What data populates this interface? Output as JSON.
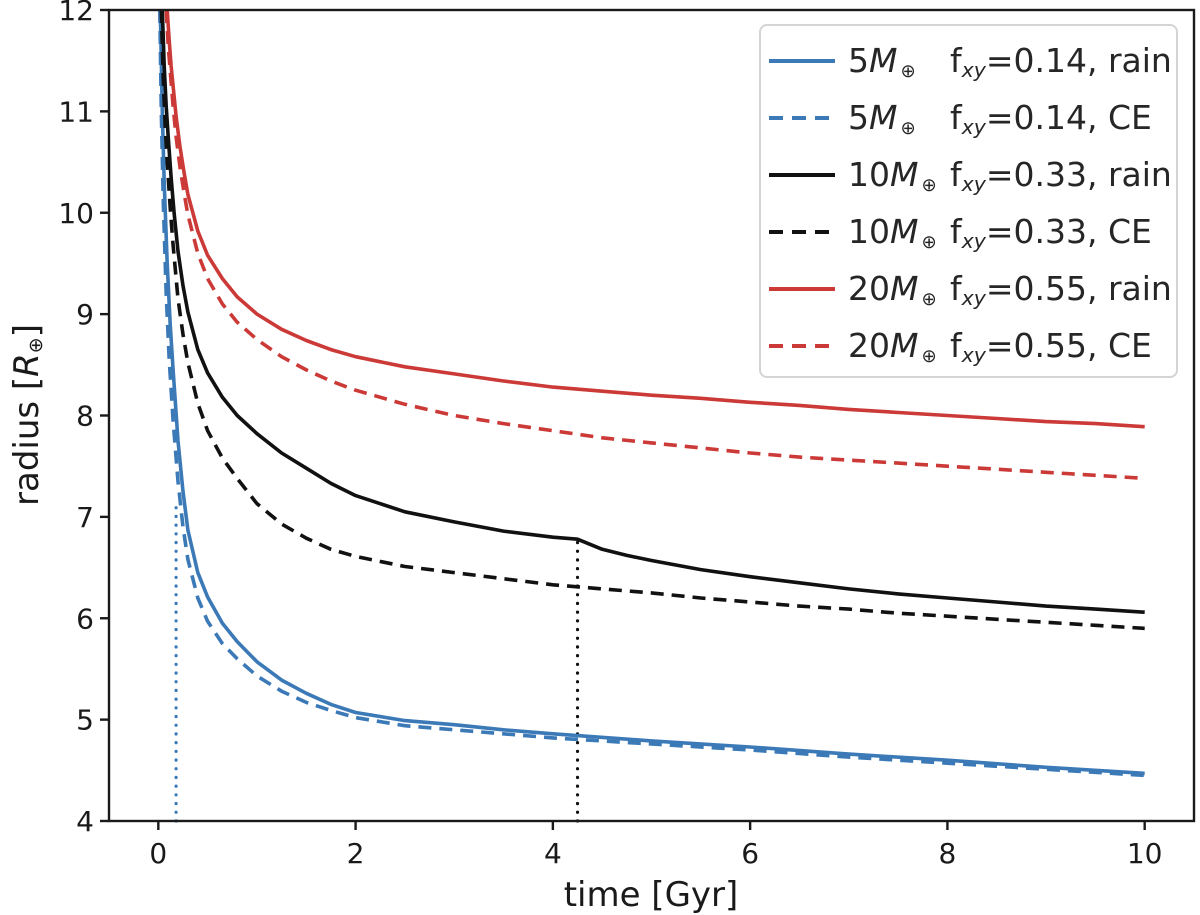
{
  "figure": {
    "xlabel": "time [Gyr]",
    "ylabel_prefix": "radius [",
    "ylabel_R": "R",
    "ylabel_sub": "⊕",
    "ylabel_suffix": "]"
  },
  "legend": {
    "symbols": {
      "mass_unit": "M",
      "earth": "⊕",
      "f": "f",
      "f_sub": "xy"
    },
    "entries": [
      {
        "mass": "5",
        "value": "=0.14",
        "mode": ", rain"
      },
      {
        "mass": "5",
        "value": "=0.14",
        "mode": ", CE"
      },
      {
        "mass": "10",
        "value": "=0.33",
        "mode": ", rain"
      },
      {
        "mass": "10",
        "value": "=0.33",
        "mode": ", CE"
      },
      {
        "mass": "20",
        "value": "=0.55",
        "mode": ", rain"
      },
      {
        "mass": "20",
        "value": "=0.55",
        "mode": ", CE"
      }
    ]
  },
  "chart_data": {
    "type": "line",
    "title": "",
    "xlabel": "time [Gyr]",
    "ylabel": "radius [R⊕]",
    "xlim": [
      -0.5,
      10.5
    ],
    "ylim": [
      4,
      12
    ],
    "xticks": [
      0,
      2,
      4,
      6,
      8,
      10
    ],
    "xtick_labels": [
      "0",
      "2",
      "4",
      "6",
      "8",
      "10"
    ],
    "yticks": [
      4,
      5,
      6,
      7,
      8,
      9,
      10,
      11,
      12
    ],
    "ytick_labels": [
      "4",
      "5",
      "6",
      "7",
      "8",
      "9",
      "10",
      "11",
      "12"
    ],
    "grid": false,
    "legend_position": "upper right",
    "axis_color": "#1a1a1a",
    "series": [
      {
        "name": "5M⊕ fxy=0.14, rain",
        "color": "#3b79b7",
        "style": "solid",
        "points": [
          [
            0.02,
            12
          ],
          [
            0.04,
            11.0
          ],
          [
            0.06,
            10.3
          ],
          [
            0.09,
            9.5
          ],
          [
            0.12,
            8.9
          ],
          [
            0.15,
            8.45
          ],
          [
            0.2,
            7.75
          ],
          [
            0.25,
            7.25
          ],
          [
            0.3,
            6.87
          ],
          [
            0.4,
            6.45
          ],
          [
            0.5,
            6.21
          ],
          [
            0.65,
            5.95
          ],
          [
            0.8,
            5.77
          ],
          [
            1.0,
            5.57
          ],
          [
            1.25,
            5.39
          ],
          [
            1.5,
            5.26
          ],
          [
            1.75,
            5.15
          ],
          [
            2.0,
            5.07
          ],
          [
            2.5,
            4.99
          ],
          [
            3.0,
            4.95
          ],
          [
            3.5,
            4.9
          ],
          [
            4.0,
            4.86
          ],
          [
            5.0,
            4.79
          ],
          [
            6.0,
            4.73
          ],
          [
            7.0,
            4.66
          ],
          [
            8.0,
            4.6
          ],
          [
            9.0,
            4.53
          ],
          [
            10.0,
            4.47
          ]
        ]
      },
      {
        "name": "5M⊕ fxy=0.14, CE",
        "color": "#3b79b7",
        "style": "dashed",
        "points": [
          [
            0.015,
            12
          ],
          [
            0.03,
            11.0
          ],
          [
            0.05,
            10.1
          ],
          [
            0.08,
            9.2
          ],
          [
            0.11,
            8.55
          ],
          [
            0.15,
            7.95
          ],
          [
            0.2,
            7.35
          ],
          [
            0.25,
            6.9
          ],
          [
            0.3,
            6.58
          ],
          [
            0.4,
            6.2
          ],
          [
            0.5,
            5.97
          ],
          [
            0.65,
            5.75
          ],
          [
            0.8,
            5.6
          ],
          [
            1.0,
            5.43
          ],
          [
            1.25,
            5.28
          ],
          [
            1.5,
            5.17
          ],
          [
            1.75,
            5.09
          ],
          [
            2.0,
            5.02
          ],
          [
            2.5,
            4.94
          ],
          [
            3.0,
            4.9
          ],
          [
            3.5,
            4.86
          ],
          [
            4.0,
            4.82
          ],
          [
            5.0,
            4.76
          ],
          [
            6.0,
            4.7
          ],
          [
            7.0,
            4.63
          ],
          [
            8.0,
            4.57
          ],
          [
            9.0,
            4.51
          ],
          [
            10.0,
            4.45
          ]
        ]
      },
      {
        "name": "10M⊕ fxy=0.33, rain",
        "color": "#111111",
        "style": "solid",
        "points": [
          [
            0.04,
            12
          ],
          [
            0.06,
            11.45
          ],
          [
            0.08,
            11.05
          ],
          [
            0.1,
            10.75
          ],
          [
            0.13,
            10.35
          ],
          [
            0.16,
            10.0
          ],
          [
            0.2,
            9.62
          ],
          [
            0.25,
            9.28
          ],
          [
            0.3,
            9.02
          ],
          [
            0.4,
            8.65
          ],
          [
            0.5,
            8.42
          ],
          [
            0.65,
            8.18
          ],
          [
            0.8,
            8.0
          ],
          [
            1.0,
            7.82
          ],
          [
            1.25,
            7.63
          ],
          [
            1.5,
            7.48
          ],
          [
            1.75,
            7.33
          ],
          [
            2.0,
            7.21
          ],
          [
            2.5,
            7.05
          ],
          [
            3.0,
            6.95
          ],
          [
            3.5,
            6.86
          ],
          [
            4.0,
            6.8
          ],
          [
            4.25,
            6.78
          ],
          [
            4.5,
            6.68
          ],
          [
            4.75,
            6.62
          ],
          [
            5.0,
            6.57
          ],
          [
            5.5,
            6.48
          ],
          [
            6.0,
            6.41
          ],
          [
            6.5,
            6.35
          ],
          [
            7.0,
            6.29
          ],
          [
            7.5,
            6.24
          ],
          [
            8.0,
            6.2
          ],
          [
            8.5,
            6.16
          ],
          [
            9.0,
            6.12
          ],
          [
            9.5,
            6.09
          ],
          [
            10.0,
            6.06
          ]
        ]
      },
      {
        "name": "10M⊕ fxy=0.33, CE",
        "color": "#111111",
        "style": "dashed",
        "points": [
          [
            0.03,
            12
          ],
          [
            0.05,
            11.3
          ],
          [
            0.07,
            10.85
          ],
          [
            0.09,
            10.5
          ],
          [
            0.12,
            10.05
          ],
          [
            0.15,
            9.68
          ],
          [
            0.2,
            9.15
          ],
          [
            0.25,
            8.8
          ],
          [
            0.3,
            8.52
          ],
          [
            0.4,
            8.12
          ],
          [
            0.5,
            7.85
          ],
          [
            0.65,
            7.58
          ],
          [
            0.8,
            7.38
          ],
          [
            1.0,
            7.13
          ],
          [
            1.25,
            6.93
          ],
          [
            1.5,
            6.79
          ],
          [
            1.75,
            6.68
          ],
          [
            2.0,
            6.61
          ],
          [
            2.5,
            6.51
          ],
          [
            3.0,
            6.45
          ],
          [
            3.5,
            6.39
          ],
          [
            4.0,
            6.33
          ],
          [
            4.5,
            6.29
          ],
          [
            5.0,
            6.25
          ],
          [
            5.5,
            6.2
          ],
          [
            6.0,
            6.16
          ],
          [
            6.5,
            6.12
          ],
          [
            7.0,
            6.09
          ],
          [
            7.5,
            6.05
          ],
          [
            8.0,
            6.02
          ],
          [
            8.5,
            5.99
          ],
          [
            9.0,
            5.96
          ],
          [
            9.5,
            5.93
          ],
          [
            10.0,
            5.9
          ]
        ]
      },
      {
        "name": "20M⊕ fxy=0.55, rain",
        "color": "#cc3a38",
        "style": "solid",
        "points": [
          [
            0.09,
            12
          ],
          [
            0.11,
            11.7
          ],
          [
            0.13,
            11.45
          ],
          [
            0.15,
            11.25
          ],
          [
            0.18,
            10.95
          ],
          [
            0.22,
            10.65
          ],
          [
            0.26,
            10.4
          ],
          [
            0.3,
            10.18
          ],
          [
            0.4,
            9.82
          ],
          [
            0.5,
            9.58
          ],
          [
            0.65,
            9.35
          ],
          [
            0.8,
            9.17
          ],
          [
            1.0,
            9.0
          ],
          [
            1.25,
            8.85
          ],
          [
            1.5,
            8.74
          ],
          [
            1.75,
            8.65
          ],
          [
            2.0,
            8.58
          ],
          [
            2.5,
            8.48
          ],
          [
            3.0,
            8.41
          ],
          [
            3.5,
            8.34
          ],
          [
            4.0,
            8.28
          ],
          [
            4.5,
            8.24
          ],
          [
            5.0,
            8.2
          ],
          [
            5.5,
            8.17
          ],
          [
            6.0,
            8.13
          ],
          [
            6.5,
            8.1
          ],
          [
            7.0,
            8.06
          ],
          [
            7.5,
            8.03
          ],
          [
            8.0,
            8.0
          ],
          [
            8.5,
            7.97
          ],
          [
            9.0,
            7.94
          ],
          [
            9.5,
            7.92
          ],
          [
            10.0,
            7.89
          ]
        ]
      },
      {
        "name": "20M⊕ fxy=0.55, CE",
        "color": "#cc3a38",
        "style": "dashed",
        "points": [
          [
            0.08,
            12
          ],
          [
            0.1,
            11.65
          ],
          [
            0.12,
            11.4
          ],
          [
            0.15,
            11.05
          ],
          [
            0.18,
            10.75
          ],
          [
            0.22,
            10.45
          ],
          [
            0.26,
            10.2
          ],
          [
            0.3,
            9.98
          ],
          [
            0.4,
            9.6
          ],
          [
            0.5,
            9.35
          ],
          [
            0.65,
            9.1
          ],
          [
            0.8,
            8.92
          ],
          [
            1.0,
            8.75
          ],
          [
            1.25,
            8.58
          ],
          [
            1.5,
            8.45
          ],
          [
            1.75,
            8.34
          ],
          [
            2.0,
            8.25
          ],
          [
            2.5,
            8.11
          ],
          [
            3.0,
            8.0
          ],
          [
            3.5,
            7.92
          ],
          [
            4.0,
            7.85
          ],
          [
            4.5,
            7.78
          ],
          [
            5.0,
            7.73
          ],
          [
            5.5,
            7.68
          ],
          [
            6.0,
            7.63
          ],
          [
            6.5,
            7.59
          ],
          [
            7.0,
            7.56
          ],
          [
            7.5,
            7.53
          ],
          [
            8.0,
            7.5
          ],
          [
            8.5,
            7.47
          ],
          [
            9.0,
            7.44
          ],
          [
            9.5,
            7.41
          ],
          [
            10.0,
            7.38
          ]
        ]
      }
    ],
    "vlines": [
      {
        "x": 0.18,
        "ymin": 4,
        "ymax": 7.15,
        "color": "#3b79b7",
        "style": "dotted"
      },
      {
        "x": 4.25,
        "ymin": 4,
        "ymax": 6.78,
        "color": "#111111",
        "style": "dotted"
      }
    ]
  }
}
